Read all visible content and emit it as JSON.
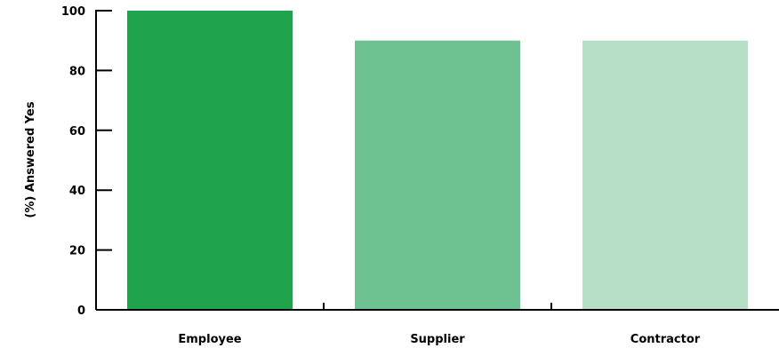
{
  "chart_data": {
    "type": "bar",
    "categories": [
      "Employee",
      "Supplier",
      "Contractor"
    ],
    "values": [
      100,
      90,
      90
    ],
    "bar_colors": [
      "#1fa34d",
      "#6ec292",
      "#b6dfc6"
    ],
    "title": "",
    "xlabel": "",
    "ylabel": "(%) Answered Yes",
    "ylim": [
      0,
      100
    ],
    "yticks": [
      0,
      20,
      40,
      60,
      80,
      100
    ],
    "grid": false,
    "legend": "none"
  }
}
